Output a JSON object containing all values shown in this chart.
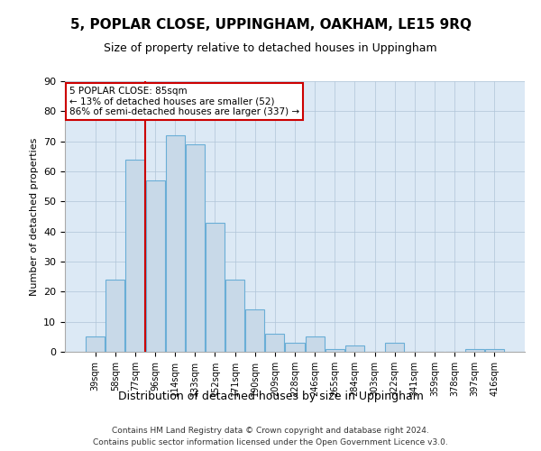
{
  "title": "5, POPLAR CLOSE, UPPINGHAM, OAKHAM, LE15 9RQ",
  "subtitle": "Size of property relative to detached houses in Uppingham",
  "xlabel": "Distribution of detached houses by size in Uppingham",
  "ylabel": "Number of detached properties",
  "categories": [
    "39sqm",
    "58sqm",
    "77sqm",
    "96sqm",
    "114sqm",
    "133sqm",
    "152sqm",
    "171sqm",
    "190sqm",
    "209sqm",
    "228sqm",
    "246sqm",
    "265sqm",
    "284sqm",
    "303sqm",
    "322sqm",
    "341sqm",
    "359sqm",
    "378sqm",
    "397sqm",
    "416sqm"
  ],
  "values": [
    5,
    24,
    64,
    57,
    72,
    69,
    43,
    24,
    14,
    6,
    3,
    5,
    1,
    2,
    0,
    3,
    0,
    0,
    0,
    1,
    1
  ],
  "bar_color": "#c8d9e8",
  "bar_edge_color": "#6aaed6",
  "vline_x": 2.5,
  "vline_color": "#cc0000",
  "annotation_line1": "5 POPLAR CLOSE: 85sqm",
  "annotation_line2": "← 13% of detached houses are smaller (52)",
  "annotation_line3": "86% of semi-detached houses are larger (337) →",
  "annotation_box_color": "#ffffff",
  "annotation_box_edge_color": "#cc0000",
  "ylim": [
    0,
    90
  ],
  "yticks": [
    0,
    10,
    20,
    30,
    40,
    50,
    60,
    70,
    80,
    90
  ],
  "grid_color": "#b0c4d8",
  "background_color": "#dce9f5",
  "footer_line1": "Contains HM Land Registry data © Crown copyright and database right 2024.",
  "footer_line2": "Contains public sector information licensed under the Open Government Licence v3.0."
}
